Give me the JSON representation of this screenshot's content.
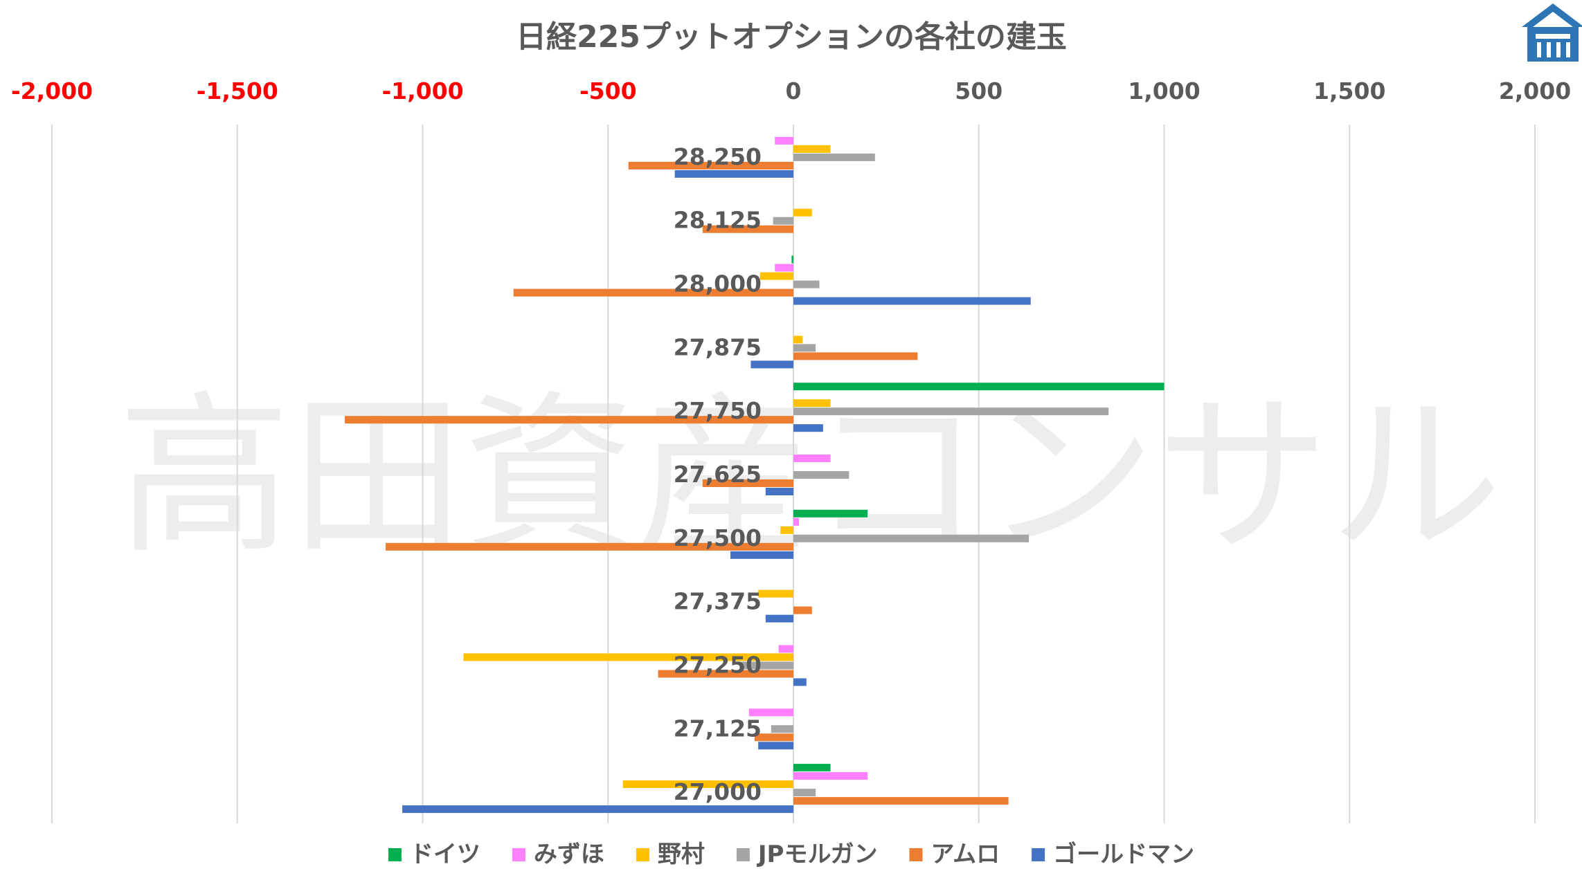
{
  "chart_data": {
    "type": "bar",
    "orientation": "horizontal",
    "title": "日経225プットオプションの各社の建玉",
    "watermark": "高田資産コンサル",
    "logo": "house-logo",
    "xlim": [
      -2000,
      2000
    ],
    "xticks": [
      "-2,000",
      "-1,500",
      "-1,000",
      "-500",
      "0",
      "500",
      "1,000",
      "1,500",
      "2,000"
    ],
    "xtick_values": [
      -2000,
      -1500,
      -1000,
      -500,
      0,
      500,
      1000,
      1500,
      2000
    ],
    "negative_tick_color": "#FF0000",
    "positive_tick_color": "#595959",
    "grid": true,
    "legend_position": "bottom",
    "categories": [
      "28,250",
      "28,125",
      "28,000",
      "27,875",
      "27,750",
      "27,625",
      "27,500",
      "27,375",
      "27,250",
      "27,125",
      "27,000"
    ],
    "series": [
      {
        "name": "ドイツ",
        "color": "#00B050",
        "values": [
          0,
          0,
          -5,
          0,
          1000,
          0,
          200,
          0,
          0,
          0,
          100
        ]
      },
      {
        "name": "みずほ",
        "color": "#FF80FF",
        "values": [
          -50,
          0,
          -50,
          0,
          0,
          100,
          15,
          0,
          -40,
          -120,
          200
        ]
      },
      {
        "name": "野村",
        "color": "#FFC000",
        "values": [
          100,
          50,
          -90,
          25,
          100,
          0,
          -35,
          -95,
          -890,
          0,
          -460
        ]
      },
      {
        "name": "JPモルガン",
        "color": "#A5A5A5",
        "values": [
          220,
          -55,
          70,
          60,
          850,
          150,
          635,
          0,
          -145,
          -60,
          60
        ]
      },
      {
        "name": "アムロ",
        "color": "#ED7D31",
        "values": [
          -445,
          -245,
          -755,
          335,
          -1210,
          -245,
          -1100,
          50,
          -365,
          -105,
          580
        ]
      },
      {
        "name": "ゴールドマン",
        "color": "#4472C4",
        "values": [
          -320,
          0,
          640,
          -115,
          80,
          -75,
          -170,
          -75,
          35,
          -95,
          -1055
        ]
      }
    ]
  }
}
